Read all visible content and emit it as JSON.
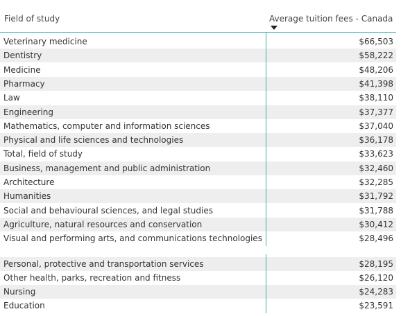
{
  "table": {
    "columns": [
      "Field of study",
      "Average tuition fees - Canada"
    ],
    "groups": [
      [
        [
          "Veterinary medicine",
          "$66,503"
        ],
        [
          "Dentistry",
          "$58,222"
        ],
        [
          "Medicine",
          "$48,206"
        ],
        [
          "Pharmacy",
          "$41,398"
        ],
        [
          "Law",
          "$38,110"
        ],
        [
          "Engineering",
          "$37,377"
        ],
        [
          "Mathematics, computer and information sciences",
          "$37,040"
        ],
        [
          "Physical and life sciences and technologies",
          "$36,178"
        ],
        [
          "Total, field of study",
          "$33,623"
        ],
        [
          "Business, management and public administration",
          "$32,460"
        ],
        [
          "Architecture",
          "$32,285"
        ],
        [
          "Humanities",
          "$31,792"
        ],
        [
          "Social and behavioural sciences, and legal studies",
          "$31,788"
        ],
        [
          "Agriculture, natural resources and conservation",
          "$30,412"
        ],
        [
          "Visual and performing arts, and communications technologies",
          "$28,496"
        ]
      ],
      [
        [
          "Personal, protective and transportation services",
          "$28,195"
        ],
        [
          "Other health, parks, recreation and fitness",
          "$26,120"
        ],
        [
          "Nursing",
          "$24,283"
        ],
        [
          "Education",
          "$23,591"
        ]
      ]
    ]
  }
}
